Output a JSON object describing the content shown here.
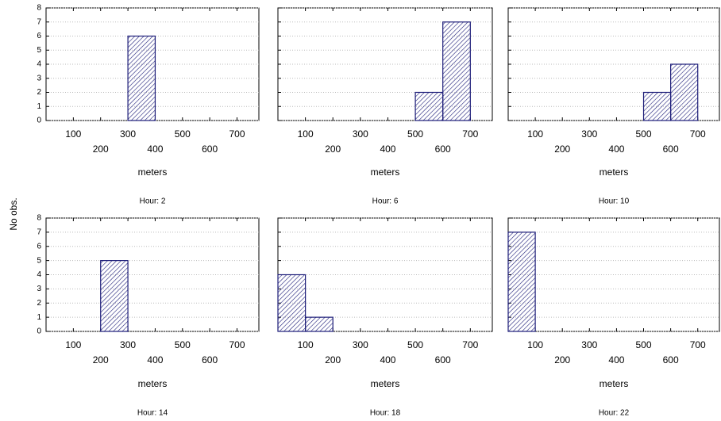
{
  "ylabel": "No obs.",
  "chart_data": [
    {
      "type": "histogram",
      "title": "Hour: 2",
      "xlabel": "meters",
      "bins": [
        0,
        100,
        200,
        300,
        400,
        500,
        600,
        700
      ],
      "counts": [
        0,
        0,
        0,
        6,
        0,
        0,
        0
      ],
      "color": "#1c1c78",
      "xlim": [
        0,
        780
      ],
      "ylim": [
        0,
        8
      ],
      "xticks": [
        100,
        200,
        300,
        400,
        500,
        600,
        700
      ],
      "yticks": [
        0,
        1,
        2,
        3,
        4,
        5,
        6,
        7,
        8
      ],
      "grid": true
    },
    {
      "type": "histogram",
      "title": "Hour: 6",
      "xlabel": "meters",
      "bins": [
        0,
        100,
        200,
        300,
        400,
        500,
        600,
        700
      ],
      "counts": [
        0,
        0,
        0,
        0,
        0,
        2,
        7
      ],
      "color": "#1c1c78",
      "xlim": [
        0,
        780
      ],
      "ylim": [
        0,
        8
      ],
      "xticks": [
        100,
        200,
        300,
        400,
        500,
        600,
        700
      ],
      "yticks": [
        0,
        1,
        2,
        3,
        4,
        5,
        6,
        7,
        8
      ],
      "grid": true
    },
    {
      "type": "histogram",
      "title": "Hour: 10",
      "xlabel": "meters",
      "bins": [
        0,
        100,
        200,
        300,
        400,
        500,
        600,
        700
      ],
      "counts": [
        0,
        0,
        0,
        0,
        0,
        2,
        4
      ],
      "color": "#1c1c78",
      "xlim": [
        0,
        780
      ],
      "ylim": [
        0,
        8
      ],
      "xticks": [
        100,
        200,
        300,
        400,
        500,
        600,
        700
      ],
      "yticks": [
        0,
        1,
        2,
        3,
        4,
        5,
        6,
        7,
        8
      ],
      "grid": true
    },
    {
      "type": "histogram",
      "title": "Hour: 14",
      "xlabel": "meters",
      "bins": [
        0,
        100,
        200,
        300,
        400,
        500,
        600,
        700
      ],
      "counts": [
        0,
        0,
        5,
        0,
        0,
        0,
        0
      ],
      "color": "#1c1c78",
      "xlim": [
        0,
        780
      ],
      "ylim": [
        0,
        8
      ],
      "xticks": [
        100,
        200,
        300,
        400,
        500,
        600,
        700
      ],
      "yticks": [
        0,
        1,
        2,
        3,
        4,
        5,
        6,
        7,
        8
      ],
      "grid": true
    },
    {
      "type": "histogram",
      "title": "Hour: 18",
      "xlabel": "meters",
      "bins": [
        0,
        100,
        200,
        300,
        400,
        500,
        600,
        700
      ],
      "counts": [
        4,
        1,
        0,
        0,
        0,
        0,
        0
      ],
      "color": "#1c1c78",
      "xlim": [
        0,
        780
      ],
      "ylim": [
        0,
        8
      ],
      "xticks": [
        100,
        200,
        300,
        400,
        500,
        600,
        700
      ],
      "yticks": [
        0,
        1,
        2,
        3,
        4,
        5,
        6,
        7,
        8
      ],
      "grid": true
    },
    {
      "type": "histogram",
      "title": "Hour: 22",
      "xlabel": "meters",
      "bins": [
        0,
        100,
        200,
        300,
        400,
        500,
        600,
        700
      ],
      "counts": [
        7,
        0,
        0,
        0,
        0,
        0,
        0
      ],
      "color": "#1c1c78",
      "xlim": [
        0,
        780
      ],
      "ylim": [
        0,
        8
      ],
      "xticks": [
        100,
        200,
        300,
        400,
        500,
        600,
        700
      ],
      "yticks": [
        0,
        1,
        2,
        3,
        4,
        5,
        6,
        7,
        8
      ],
      "grid": true
    }
  ]
}
